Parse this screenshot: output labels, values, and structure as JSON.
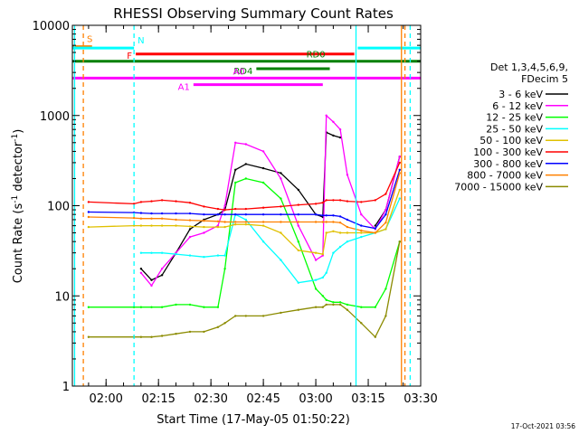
{
  "chart_data": {
    "type": "line",
    "title": "RHESSI Observing Summary Count Rates",
    "xlabel": "Start Time (17-May-05 01:50:22)",
    "ylabel": "Count Rate (s",
    "ylabel_sup": "-1",
    "ylabel_tail": " detector",
    "ylabel_end": ")",
    "y_scale": "log",
    "ylim": [
      1,
      10000
    ],
    "xlim": [
      "01:50:22",
      "03:30:00"
    ],
    "x_ticks": [
      "02:00",
      "02:15",
      "02:30",
      "02:45",
      "03:00",
      "03:15",
      "03:30"
    ],
    "y_ticks": [
      "1",
      "10",
      "100",
      "1000",
      "10000"
    ],
    "grid": false,
    "legend_header": [
      "Det 1,3,4,5,6,9,",
      "FDecim 5"
    ],
    "legend_position": "right",
    "timestamp": "17-Oct-2021 03:56",
    "series": [
      {
        "name": "3 - 6 keV",
        "color": "#000000",
        "x": [
          "01:55:00",
          "02:08:00",
          "02:10:00",
          "02:13:00",
          "02:16:00",
          "02:20:00",
          "02:24:00",
          "02:28:00",
          "02:32:00",
          "02:34:00",
          "02:37:00",
          "02:40:00",
          "02:45:00",
          "02:50:00",
          "02:55:00",
          "03:00:00",
          "03:02:00",
          "03:03:00",
          "03:05:00",
          "03:07:00",
          "03:09:00",
          "03:13:00",
          "03:17:00",
          "03:20:00",
          "03:24:00"
        ],
        "y": [
          null,
          null,
          20,
          15,
          17,
          30,
          55,
          70,
          80,
          90,
          250,
          290,
          260,
          230,
          150,
          80,
          75,
          650,
          600,
          570,
          null,
          null,
          60,
          90,
          350
        ]
      },
      {
        "name": "6 - 12 keV",
        "color": "#ff00ff",
        "x": [
          "01:55:00",
          "02:08:00",
          "02:10:00",
          "02:13:00",
          "02:16:00",
          "02:20:00",
          "02:24:00",
          "02:28:00",
          "02:32:00",
          "02:34:00",
          "02:37:00",
          "02:40:00",
          "02:45:00",
          "02:50:00",
          "02:55:00",
          "03:00:00",
          "03:02:00",
          "03:03:00",
          "03:05:00",
          "03:07:00",
          "03:09:00",
          "03:13:00",
          "03:17:00",
          "03:20:00",
          "03:24:00"
        ],
        "y": [
          null,
          null,
          18,
          13,
          20,
          30,
          45,
          50,
          60,
          100,
          500,
          480,
          400,
          200,
          60,
          25,
          28,
          1000,
          850,
          700,
          220,
          80,
          55,
          90,
          350
        ]
      },
      {
        "name": "12 - 25 keV",
        "color": "#00ff00",
        "x": [
          "01:55:00",
          "02:08:00",
          "02:10:00",
          "02:13:00",
          "02:16:00",
          "02:20:00",
          "02:24:00",
          "02:28:00",
          "02:32:00",
          "02:34:00",
          "02:37:00",
          "02:40:00",
          "02:45:00",
          "02:50:00",
          "02:55:00",
          "03:00:00",
          "03:02:00",
          "03:03:00",
          "03:05:00",
          "03:07:00",
          "03:09:00",
          "03:13:00",
          "03:17:00",
          "03:20:00",
          "03:24:00"
        ],
        "y": [
          7.5,
          7.5,
          7.5,
          7.5,
          7.5,
          8,
          8,
          7.5,
          7.5,
          20,
          180,
          200,
          180,
          120,
          40,
          12,
          10,
          9,
          8.5,
          8.5,
          8,
          7.5,
          7.5,
          12,
          40
        ]
      },
      {
        "name": "25 - 50 keV",
        "color": "#00ffff",
        "x": [
          "01:55:00",
          "02:08:00",
          "02:10:00",
          "02:13:00",
          "02:16:00",
          "02:20:00",
          "02:24:00",
          "02:28:00",
          "02:32:00",
          "02:34:00",
          "02:37:00",
          "02:40:00",
          "02:45:00",
          "02:50:00",
          "02:55:00",
          "03:00:00",
          "03:02:00",
          "03:03:00",
          "03:05:00",
          "03:07:00",
          "03:09:00",
          "03:13:00",
          "03:17:00",
          "03:20:00",
          "03:24:00"
        ],
        "y": [
          null,
          null,
          30,
          30,
          30,
          29,
          28,
          27,
          28,
          28,
          80,
          70,
          40,
          25,
          14,
          15,
          16,
          18,
          30,
          35,
          40,
          45,
          50,
          55,
          120
        ]
      },
      {
        "name": "50 - 100 keV",
        "color": "#e0c000",
        "x": [
          "01:55:00",
          "02:08:00",
          "02:10:00",
          "02:13:00",
          "02:16:00",
          "02:20:00",
          "02:24:00",
          "02:28:00",
          "02:32:00",
          "02:34:00",
          "02:37:00",
          "02:40:00",
          "02:45:00",
          "02:50:00",
          "02:55:00",
          "03:00:00",
          "03:02:00",
          "03:03:00",
          "03:05:00",
          "03:07:00",
          "03:09:00",
          "03:13:00",
          "03:17:00",
          "03:20:00",
          "03:24:00"
        ],
        "y": [
          58,
          60,
          60,
          60,
          60,
          60,
          59,
          58,
          58,
          58,
          62,
          62,
          60,
          50,
          32,
          30,
          29,
          50,
          52,
          50,
          50,
          50,
          50,
          55,
          150
        ]
      },
      {
        "name": "100 - 300 keV",
        "color": "#ff0000",
        "x": [
          "01:55:00",
          "02:08:00",
          "02:10:00",
          "02:13:00",
          "02:16:00",
          "02:20:00",
          "02:24:00",
          "02:28:00",
          "02:32:00",
          "02:34:00",
          "02:37:00",
          "02:40:00",
          "02:45:00",
          "02:50:00",
          "02:55:00",
          "03:00:00",
          "03:02:00",
          "03:03:00",
          "03:05:00",
          "03:07:00",
          "03:09:00",
          "03:13:00",
          "03:17:00",
          "03:20:00",
          "03:24:00"
        ],
        "y": [
          110,
          105,
          110,
          112,
          115,
          112,
          108,
          98,
          92,
          90,
          92,
          92,
          95,
          98,
          102,
          105,
          108,
          115,
          115,
          115,
          112,
          110,
          115,
          135,
          300
        ]
      },
      {
        "name": "300 - 800 keV",
        "color": "#0000ff",
        "x": [
          "01:55:00",
          "02:08:00",
          "02:10:00",
          "02:13:00",
          "02:16:00",
          "02:20:00",
          "02:24:00",
          "02:28:00",
          "02:32:00",
          "02:34:00",
          "02:37:00",
          "02:40:00",
          "02:45:00",
          "02:50:00",
          "02:55:00",
          "03:00:00",
          "03:02:00",
          "03:03:00",
          "03:05:00",
          "03:07:00",
          "03:09:00",
          "03:13:00",
          "03:17:00",
          "03:20:00",
          "03:24:00"
        ],
        "y": [
          85,
          84,
          83,
          82,
          82,
          82,
          82,
          80,
          80,
          80,
          80,
          80,
          80,
          80,
          80,
          80,
          78,
          78,
          78,
          76,
          70,
          60,
          56,
          80,
          250
        ]
      },
      {
        "name": "800 - 7000 keV",
        "color": "#ff8000",
        "x": [
          "01:55:00",
          "02:08:00",
          "02:10:00",
          "02:13:00",
          "02:16:00",
          "02:20:00",
          "02:24:00",
          "02:28:00",
          "02:32:00",
          "02:34:00",
          "02:37:00",
          "02:40:00",
          "02:45:00",
          "02:50:00",
          "02:55:00",
          "03:00:00",
          "03:02:00",
          "03:03:00",
          "03:05:00",
          "03:07:00",
          "03:09:00",
          "03:13:00",
          "03:17:00",
          "03:20:00",
          "03:24:00"
        ],
        "y": [
          75,
          73,
          72,
          72,
          72,
          70,
          69,
          68,
          67,
          66,
          66,
          66,
          66,
          66,
          66,
          66,
          66,
          66,
          66,
          65,
          58,
          53,
          50,
          65,
          230
        ]
      },
      {
        "name": "7000 - 15000 keV",
        "color": "#8b8b00",
        "x": [
          "01:55:00",
          "02:08:00",
          "02:10:00",
          "02:13:00",
          "02:16:00",
          "02:20:00",
          "02:24:00",
          "02:28:00",
          "02:32:00",
          "02:34:00",
          "02:37:00",
          "02:40:00",
          "02:45:00",
          "02:50:00",
          "02:55:00",
          "03:00:00",
          "03:02:00",
          "03:03:00",
          "03:05:00",
          "03:07:00",
          "03:09:00",
          "03:13:00",
          "03:17:00",
          "03:20:00",
          "03:24:00"
        ],
        "y": [
          3.5,
          3.5,
          3.5,
          3.5,
          3.6,
          3.8,
          4,
          4,
          4.5,
          5,
          6,
          6,
          6,
          6.5,
          7,
          7.5,
          7.5,
          8,
          8,
          8,
          7,
          5,
          3.5,
          6,
          40
        ]
      }
    ],
    "state_bars": [
      {
        "label": "S",
        "color": "#ff8000",
        "level": 5800,
        "start": "01:50:22",
        "end": "01:56:00"
      },
      {
        "label": "N",
        "color": "#00ffff",
        "level": 5600,
        "start": "01:50:22",
        "end": "02:08:00"
      },
      {
        "label": "N",
        "color": "#00ffff",
        "level": 5600,
        "start": "03:12:00",
        "end": "03:30:00",
        "show_label": false
      },
      {
        "label": "F",
        "color": "#ff0000",
        "level": 4800,
        "start": "02:08:30",
        "end": "03:11:00"
      },
      {
        "label": "RD0",
        "color": "#008000",
        "level": 4000,
        "start": "01:50:22",
        "end": "03:30:00"
      },
      {
        "label": "RD4",
        "color": "#008000",
        "level": 3300,
        "start": "02:43:00",
        "end": "03:04:00"
      },
      {
        "label": "A0",
        "color": "#ff00ff",
        "level": 2600,
        "start": "01:50:22",
        "end": "03:30:00"
      },
      {
        "label": "A1",
        "color": "#ff00ff",
        "level": 2200,
        "start": "02:25:00",
        "end": "03:02:00"
      }
    ],
    "vertical_markers": [
      {
        "time": "01:51:00",
        "color": "#00ffff",
        "style": "solid"
      },
      {
        "time": "01:53:30",
        "color": "#ff8000",
        "style": "dashed"
      },
      {
        "time": "02:08:00",
        "color": "#00ffff",
        "style": "dashed"
      },
      {
        "time": "03:11:30",
        "color": "#00ffff",
        "style": "solid"
      },
      {
        "time": "03:24:30",
        "color": "#ff8000",
        "style": "solid"
      },
      {
        "time": "03:25:30",
        "color": "#ff8000",
        "style": "dashed"
      },
      {
        "time": "03:27:00",
        "color": "#00ffff",
        "style": "dashed"
      }
    ]
  }
}
